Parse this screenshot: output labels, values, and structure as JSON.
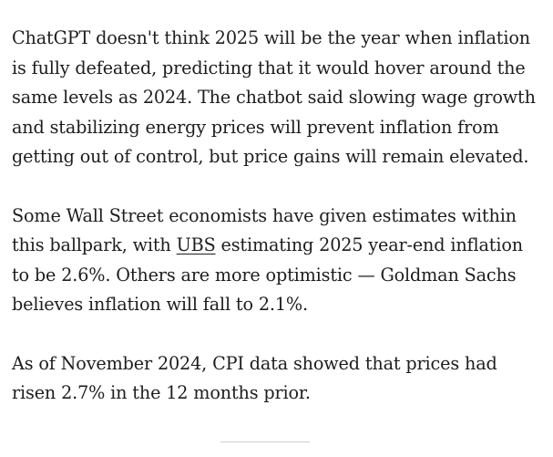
{
  "article": {
    "paragraphs": [
      {
        "lines": [
          "ChatGPT doesn't think 2025 will be the year when inflation",
          "is fully defeated, predicting that it would hover around the",
          "same levels as 2024. The chatbot said slowing wage growth",
          "and stabilizing energy prices will prevent inflation from",
          "getting out of control, but price gains will remain elevated."
        ]
      },
      {
        "line1": "Some Wall Street economists have given estimates within",
        "line2_before_link": "this ballpark, with ",
        "link_text": "UBS",
        "line2_after_link": " estimating 2025 year-end inflation",
        "line3": "to be 2.6%. Others are more optimistic — Goldman Sachs",
        "line4": "believes inflation will fall to 2.1%."
      },
      {
        "lines": [
          "As of November 2024, CPI data showed that prices had",
          "risen 2.7% in the 12 months prior."
        ]
      }
    ]
  }
}
